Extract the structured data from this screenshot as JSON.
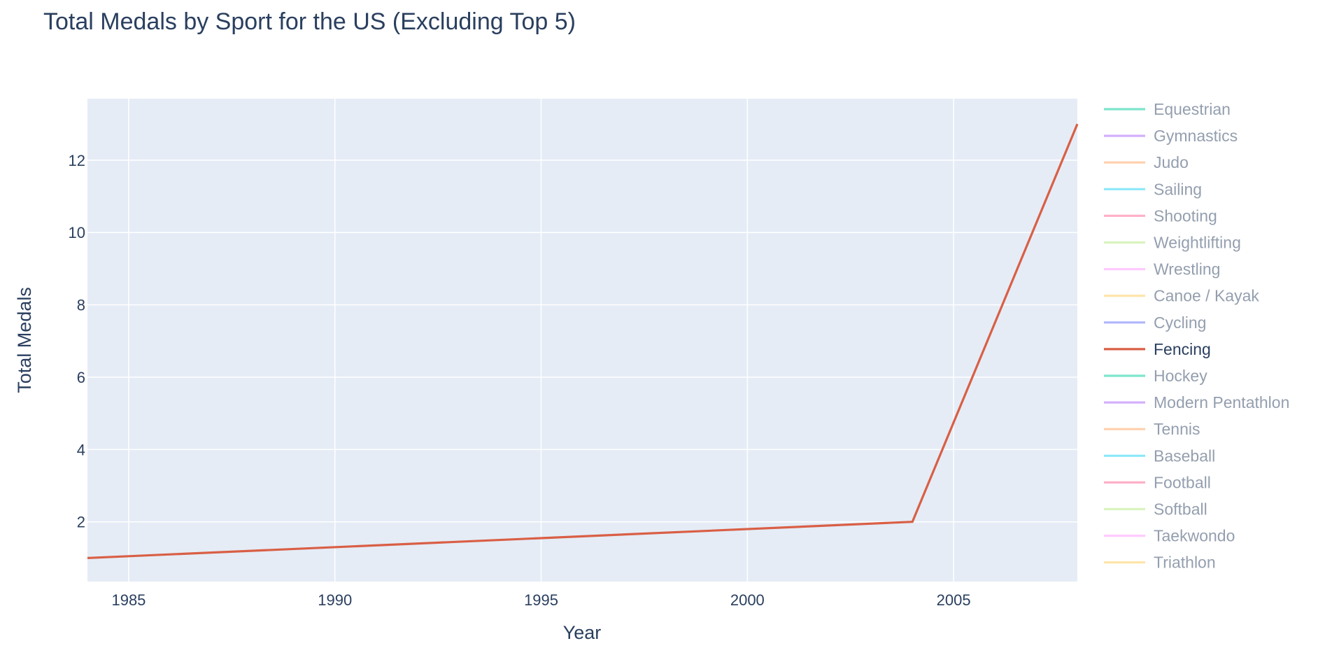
{
  "chart_data": {
    "type": "line",
    "title": "Total Medals by Sport for the US (Excluding Top 5)",
    "xlabel": "Year",
    "ylabel": "Total Medals",
    "xlim": [
      1984,
      2008
    ],
    "ylim": [
      0.35,
      13.7
    ],
    "x_ticks": [
      1985,
      1990,
      1995,
      2000,
      2005
    ],
    "y_ticks": [
      2,
      4,
      6,
      8,
      10,
      12
    ],
    "grid": true,
    "plot_bgcolor": "#e5ecf6",
    "legend_placement": "right",
    "series": [
      {
        "name": "Equestrian",
        "color": "#00cc96",
        "active": false,
        "points": []
      },
      {
        "name": "Gymnastics",
        "color": "#ab63fa",
        "active": false,
        "points": []
      },
      {
        "name": "Judo",
        "color": "#ffa15a",
        "active": false,
        "points": []
      },
      {
        "name": "Sailing",
        "color": "#19d3f3",
        "active": false,
        "points": []
      },
      {
        "name": "Shooting",
        "color": "#ff6692",
        "active": false,
        "points": []
      },
      {
        "name": "Weightlifting",
        "color": "#b6e880",
        "active": false,
        "points": []
      },
      {
        "name": "Wrestling",
        "color": "#ff97ff",
        "active": false,
        "points": []
      },
      {
        "name": "Canoe / Kayak",
        "color": "#fecb52",
        "active": false,
        "points": []
      },
      {
        "name": "Cycling",
        "color": "#636efa",
        "active": false,
        "points": []
      },
      {
        "name": "Fencing",
        "color": "#d95f45",
        "active": true,
        "points": [
          {
            "x": 1984,
            "y": 1
          },
          {
            "x": 2004,
            "y": 2
          },
          {
            "x": 2008,
            "y": 13
          }
        ]
      },
      {
        "name": "Hockey",
        "color": "#00cc96",
        "active": false,
        "points": []
      },
      {
        "name": "Modern Pentathlon",
        "color": "#ab63fa",
        "active": false,
        "points": []
      },
      {
        "name": "Tennis",
        "color": "#ffa15a",
        "active": false,
        "points": []
      },
      {
        "name": "Baseball",
        "color": "#19d3f3",
        "active": false,
        "points": []
      },
      {
        "name": "Football",
        "color": "#ff6692",
        "active": false,
        "points": []
      },
      {
        "name": "Softball",
        "color": "#b6e880",
        "active": false,
        "points": []
      },
      {
        "name": "Taekwondo",
        "color": "#ff97ff",
        "active": false,
        "points": []
      },
      {
        "name": "Triathlon",
        "color": "#fecb52",
        "active": false,
        "points": []
      }
    ]
  }
}
